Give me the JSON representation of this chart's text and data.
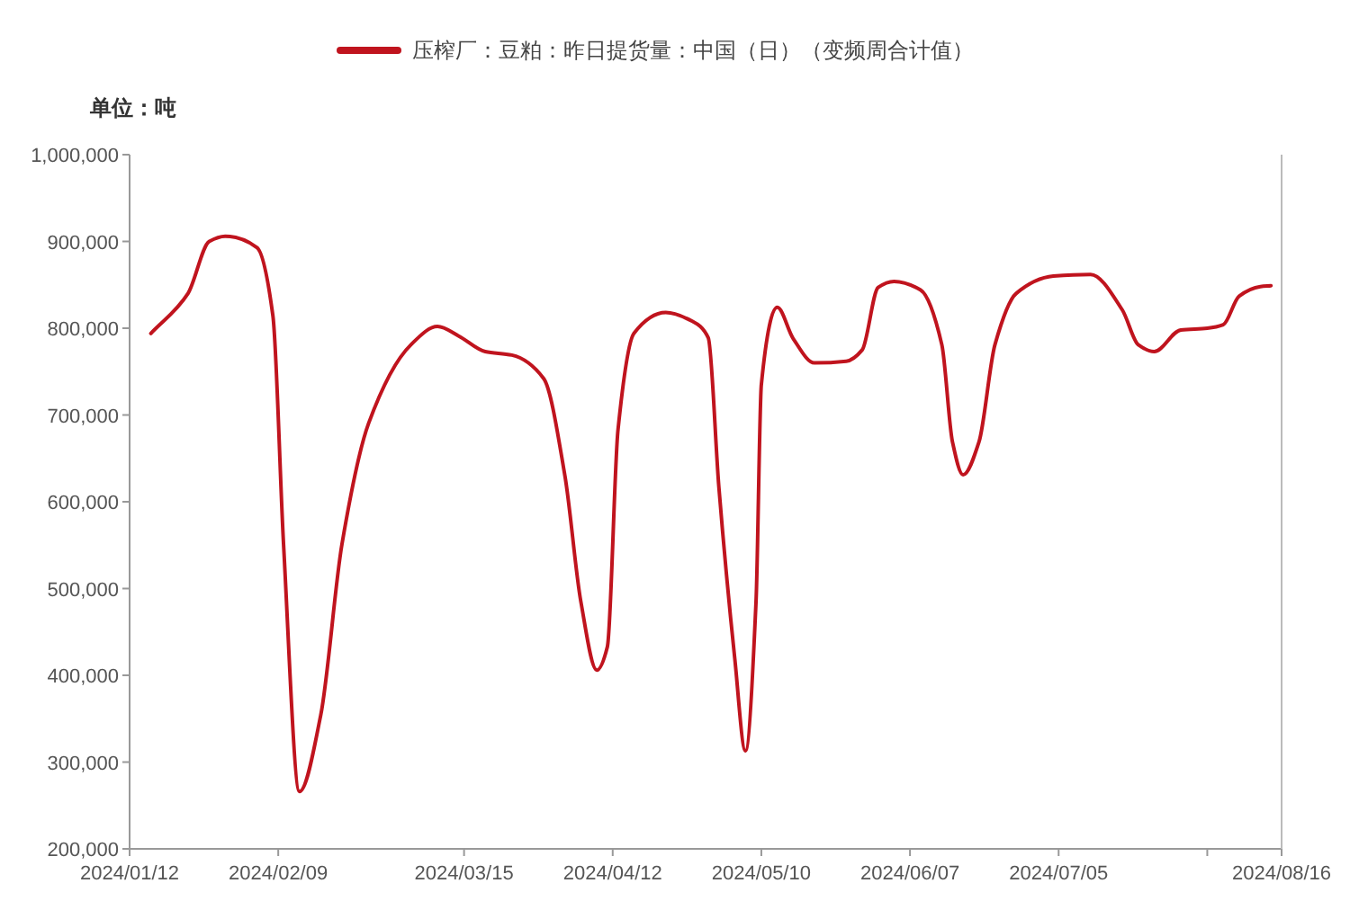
{
  "chart_data": {
    "type": "line",
    "ylabel": "单位：吨",
    "legend": "top",
    "x": [
      "2024-01-16",
      "2024-01-23",
      "2024-01-27",
      "2024-01-30",
      "2024-02-05",
      "2024-02-08",
      "2024-02-10",
      "2024-02-13",
      "2024-02-17",
      "2024-02-21",
      "2024-02-26",
      "2024-03-05",
      "2024-03-10",
      "2024-03-14",
      "2024-03-19",
      "2024-03-24",
      "2024-03-30",
      "2024-04-03",
      "2024-04-06",
      "2024-04-09",
      "2024-04-11",
      "2024-04-13",
      "2024-04-16",
      "2024-04-22",
      "2024-04-27",
      "2024-04-30",
      "2024-05-02",
      "2024-05-05",
      "2024-05-07",
      "2024-05-09",
      "2024-05-10",
      "2024-05-13",
      "2024-05-16",
      "2024-05-20",
      "2024-05-26",
      "2024-05-29",
      "2024-06-01",
      "2024-06-04",
      "2024-06-09",
      "2024-06-13",
      "2024-06-15",
      "2024-06-17",
      "2024-06-20",
      "2024-06-23",
      "2024-06-27",
      "2024-07-04",
      "2024-07-11",
      "2024-07-17",
      "2024-07-20",
      "2024-07-23",
      "2024-07-28",
      "2024-08-02",
      "2024-08-05",
      "2024-08-08",
      "2024-08-12",
      "2024-08-14"
    ],
    "series": [
      {
        "name": "压榨厂：豆粕：昨日提货量：中国（日）（变频周合计值）",
        "color": "#c0141e",
        "values": [
          794000,
          840000,
          900000,
          906000,
          893000,
          814000,
          551000,
          266000,
          354000,
          551000,
          690000,
          781000,
          802000,
          791000,
          773000,
          769000,
          742000,
          630000,
          485000,
          406000,
          433000,
          683000,
          794000,
          818000,
          808000,
          789000,
          617000,
          419000,
          313000,
          485000,
          735000,
          824000,
          788000,
          760000,
          762000,
          775000,
          847000,
          854000,
          844000,
          781000,
          669000,
          631000,
          669000,
          781000,
          840000,
          860000,
          862000,
          821000,
          781000,
          773000,
          798000,
          800000,
          804000,
          837000,
          848000,
          849000
        ]
      }
    ],
    "xlim": [
      "2024-01-12",
      "2024-08-16"
    ],
    "xticks": [
      {
        "value": "2024-01-12",
        "label": "2024/01/12"
      },
      {
        "value": "2024-02-09",
        "label": "2024/02/09"
      },
      {
        "value": "2024-03-15",
        "label": "2024/03/15"
      },
      {
        "value": "2024-04-12",
        "label": "2024/04/12"
      },
      {
        "value": "2024-05-10",
        "label": "2024/05/10"
      },
      {
        "value": "2024-06-07",
        "label": "2024/06/07"
      },
      {
        "value": "2024-07-05",
        "label": "2024/07/05"
      },
      {
        "value": "2024-08-02",
        "label": null
      },
      {
        "value": "2024-08-16",
        "label": "2024/08/16"
      }
    ],
    "ylim": [
      200000,
      1000000
    ],
    "yticks": [
      {
        "value": 200000,
        "label": "200,000"
      },
      {
        "value": 300000,
        "label": "300,000"
      },
      {
        "value": 400000,
        "label": "400,000"
      },
      {
        "value": 500000,
        "label": "500,000"
      },
      {
        "value": 600000,
        "label": "600,000"
      },
      {
        "value": 700000,
        "label": "700,000"
      },
      {
        "value": 800000,
        "label": "800,000"
      },
      {
        "value": 900000,
        "label": "900,000"
      },
      {
        "value": 1000000,
        "label": "1,000,000"
      }
    ]
  }
}
